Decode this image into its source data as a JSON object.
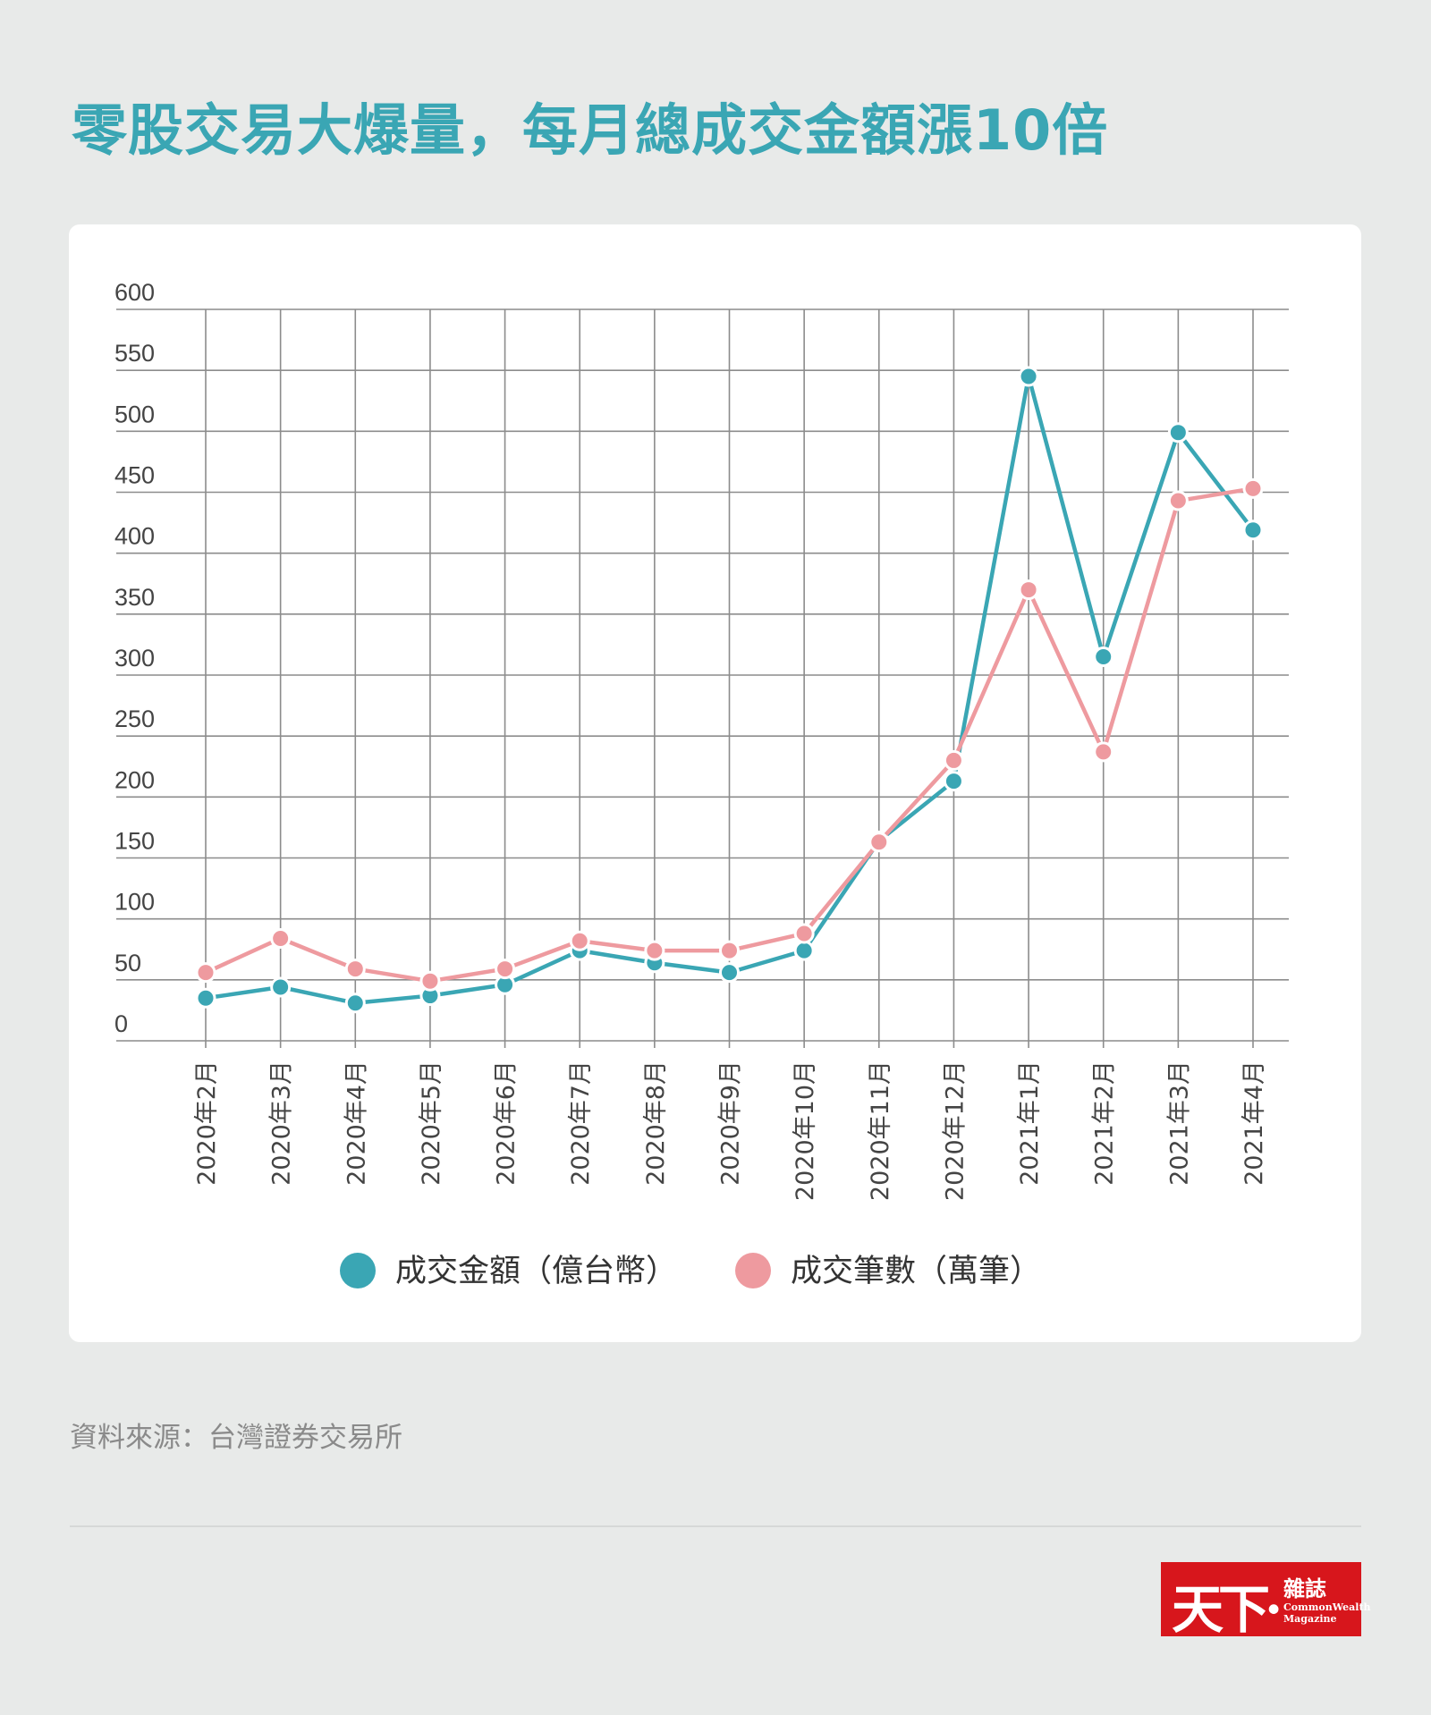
{
  "title": "零股交易大爆量，每月總成交金額漲10倍",
  "source": "資料來源：台灣證券交易所",
  "logo": {
    "zh_big": "天下",
    "zh_small": "雜誌",
    "en": "CommonWealth Magazine"
  },
  "chart_data": {
    "type": "line",
    "title": "零股交易大爆量，每月總成交金額漲10倍",
    "xlabel": "",
    "ylabel": "",
    "ylim": [
      0,
      600
    ],
    "yticks": [
      0,
      50,
      100,
      150,
      200,
      250,
      300,
      350,
      400,
      450,
      500,
      550,
      600
    ],
    "grid": true,
    "legend_placement": "bottom",
    "categories": [
      "2020年2月",
      "2020年3月",
      "2020年4月",
      "2020年5月",
      "2020年6月",
      "2020年7月",
      "2020年8月",
      "2020年9月",
      "2020年10月",
      "2020年11月",
      "2020年12月",
      "2021年1月",
      "2021年2月",
      "2021年3月",
      "2021年4月"
    ],
    "series": [
      {
        "name": "成交金額（億台幣）",
        "color": "#3aa6b4",
        "values": [
          35,
          44,
          31,
          37,
          46,
          74,
          64,
          56,
          74,
          164,
          213,
          545,
          315,
          499,
          419
        ]
      },
      {
        "name": "成交筆數（萬筆）",
        "color": "#ee9a9f",
        "values": [
          56,
          84,
          59,
          49,
          59,
          82,
          74,
          74,
          88,
          163,
          230,
          370,
          237,
          443,
          453
        ]
      }
    ]
  }
}
